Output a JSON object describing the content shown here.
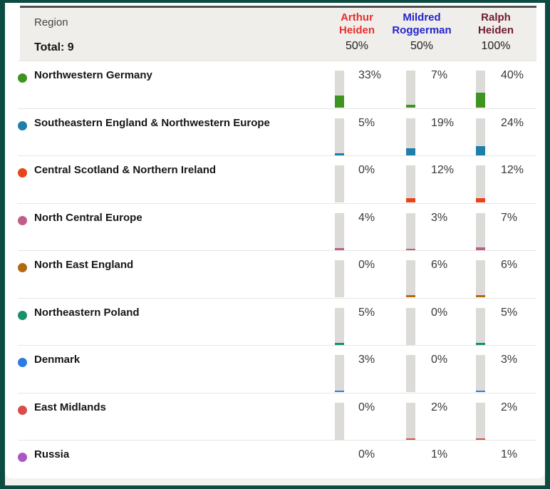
{
  "header": {
    "region_label": "Region",
    "total_label": "Total: 9",
    "columns": [
      {
        "name": "Arthur Heiden",
        "total": "50%",
        "color": "#e82f2f"
      },
      {
        "name": "Mildred Roggerman",
        "total": "50%",
        "color": "#2424cc"
      },
      {
        "name": "Ralph Heiden",
        "total": "100%",
        "color": "#701b30"
      }
    ]
  },
  "chart_data": {
    "type": "table",
    "title": "Region",
    "row_count_label": "Total: 9",
    "columns": [
      "Arthur Heiden",
      "Mildred Roggerman",
      "Ralph Heiden"
    ],
    "column_totals_pct": [
      50,
      50,
      100
    ],
    "value_unit": "percent",
    "bar_track_color": "#dcdbd8",
    "rows": [
      {
        "region": "Northwestern Germany",
        "color": "#3f9421",
        "values": [
          33,
          7,
          40
        ],
        "labels": [
          "33%",
          "7%",
          "40%"
        ],
        "bars": true
      },
      {
        "region": "Southeastern England & Northwestern Europe",
        "color": "#1f7fab",
        "values": [
          5,
          19,
          24
        ],
        "labels": [
          "5%",
          "19%",
          "24%"
        ],
        "bars": true
      },
      {
        "region": "Central Scotland & Northern Ireland",
        "color": "#e8441b",
        "values": [
          0,
          12,
          12
        ],
        "labels": [
          "0%",
          "12%",
          "12%"
        ],
        "bars": true
      },
      {
        "region": "North Central Europe",
        "color": "#bf5e88",
        "values": [
          4,
          3,
          7
        ],
        "labels": [
          "4%",
          "3%",
          "7%"
        ],
        "bars": true
      },
      {
        "region": "North East England",
        "color": "#b26a10",
        "values": [
          0,
          6,
          6
        ],
        "labels": [
          "0%",
          "6%",
          "6%"
        ],
        "bars": true
      },
      {
        "region": "Northeastern Poland",
        "color": "#17906c",
        "values": [
          5,
          0,
          5
        ],
        "labels": [
          "5%",
          "0%",
          "5%"
        ],
        "bars": true
      },
      {
        "region": "Denmark",
        "color": "#2e7ce2",
        "values": [
          3,
          0,
          3
        ],
        "labels": [
          "3%",
          "0%",
          "3%"
        ],
        "bars": true
      },
      {
        "region": "East Midlands",
        "color": "#d94d4c",
        "values": [
          0,
          2,
          2
        ],
        "labels": [
          "0%",
          "2%",
          "2%"
        ],
        "bars": true
      },
      {
        "region": "Russia",
        "color": "#ad56c4",
        "values": [
          0,
          1,
          1
        ],
        "labels": [
          "0%",
          "1%",
          "1%"
        ],
        "bars": false
      }
    ]
  }
}
